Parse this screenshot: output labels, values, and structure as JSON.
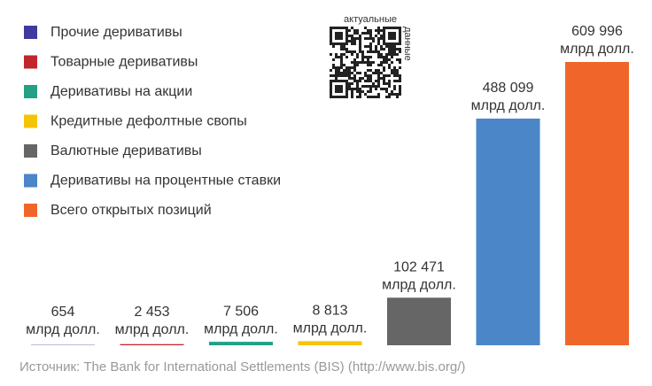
{
  "chart_data": {
    "type": "bar",
    "categories": [
      "Прочие деривативы",
      "Товарные деривативы",
      "Деривативы на акции",
      "Кредитные дефолтные свопы",
      "Валютные деривативы",
      "Деривативы на процентные ставки",
      "Всего открытых позиций"
    ],
    "values": [
      654,
      2453,
      7506,
      8813,
      102471,
      488099,
      609996
    ],
    "value_labels": [
      "654",
      "2 453",
      "7 506",
      "8 813",
      "102 471",
      "488 099",
      "609 996"
    ],
    "value_unit": "млрд долл.",
    "colors": [
      "#3f3aa0",
      "#c0272d",
      "#23a085",
      "#f5c400",
      "#666666",
      "#4a86c8",
      "#f0662a"
    ],
    "legend": "top-left",
    "qr": {
      "label_top": "актуальные",
      "label_side": "данные"
    },
    "source": "Источник: The Bank for International Settlements (BIS) (http://www.bis.org/)"
  }
}
